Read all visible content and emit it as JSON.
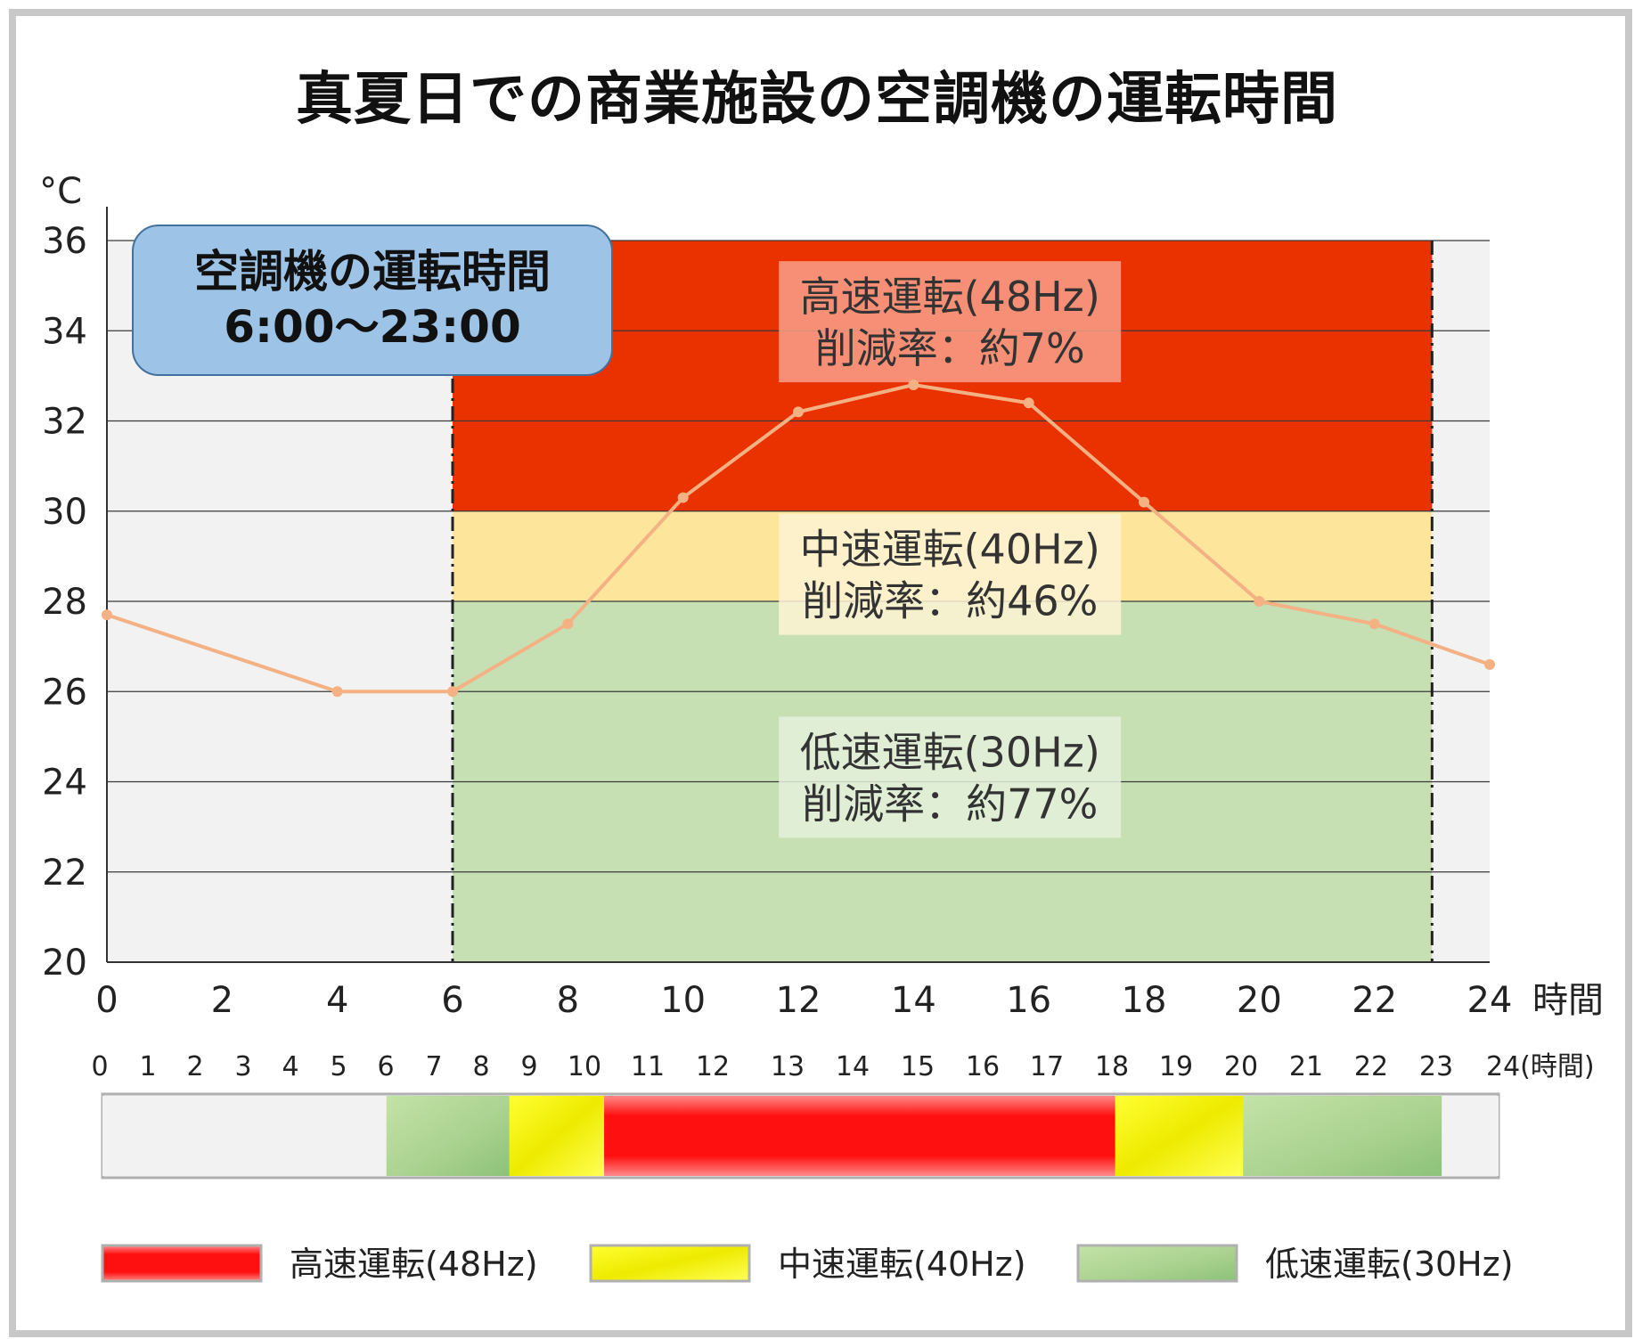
{
  "title": "真夏日での商業施設の空調機の運転時間",
  "callout": {
    "line1": "空調機の運転時間",
    "line2": "6:00～23:00"
  },
  "zones": [
    {
      "name": "高速運転(48Hz)",
      "reduction": "削減率：約7%",
      "from": 30,
      "to": 36,
      "color": "#ea3100",
      "label_bg": "#f8a08a"
    },
    {
      "name": "中速運転(40Hz)",
      "reduction": "削減率：約46%",
      "from": 28,
      "to": 30,
      "color": "#fde59b",
      "label_bg": "#fdf3d4"
    },
    {
      "name": "低速運転(30Hz)",
      "reduction": "削減率：約77%",
      "from": 20,
      "to": 28,
      "color": "#c6e0b4",
      "label_bg": "#e5f0dc"
    }
  ],
  "chart_data": {
    "type": "line",
    "title": "真夏日での商業施設の空調機の運転時間",
    "xlabel": "時間",
    "ylabel": "°C",
    "xlim": [
      0,
      24
    ],
    "ylim": [
      20,
      36
    ],
    "x_ticks": [
      0,
      2,
      4,
      6,
      8,
      10,
      12,
      14,
      16,
      18,
      20,
      22,
      24
    ],
    "y_ticks": [
      20,
      22,
      24,
      26,
      28,
      30,
      32,
      34,
      36
    ],
    "grid": true,
    "operating_hours": {
      "start": 6,
      "end": 23
    },
    "series": [
      {
        "color": "#f4b183",
        "points": [
          {
            "x": 0,
            "y": 27.7
          },
          {
            "x": 4,
            "y": 26.0
          },
          {
            "x": 6,
            "y": 26.0
          },
          {
            "x": 8,
            "y": 27.5
          },
          {
            "x": 10,
            "y": 30.3
          },
          {
            "x": 12,
            "y": 32.2
          },
          {
            "x": 14,
            "y": 32.8
          },
          {
            "x": 16,
            "y": 32.4
          },
          {
            "x": 18,
            "y": 30.2
          },
          {
            "x": 20,
            "y": 28.0
          },
          {
            "x": 22,
            "y": 27.5
          },
          {
            "x": 24,
            "y": 26.6
          }
        ]
      }
    ]
  },
  "timeline": {
    "labels": [
      "0",
      "1",
      "2",
      "3",
      "4",
      "5",
      "6",
      "7",
      "8",
      "9",
      "10",
      "11",
      "12",
      "13",
      "14",
      "15",
      "16",
      "17",
      "18",
      "19",
      "20",
      "21",
      "22",
      "23",
      "24(時間)"
    ],
    "segments": [
      {
        "from": 0,
        "to": 6,
        "mode": "off"
      },
      {
        "from": 6,
        "to": 8.6,
        "mode": "low"
      },
      {
        "from": 8.6,
        "to": 10.6,
        "mode": "mid"
      },
      {
        "from": 10.6,
        "to": 21.4,
        "mode": "high"
      },
      {
        "from": 21.4,
        "to": 24.1,
        "mode": "mid"
      },
      {
        "from": 24.1,
        "to": 28.3,
        "mode": "low"
      },
      {
        "from": 28.3,
        "to": 29.5,
        "mode": "off"
      }
    ]
  },
  "legend": [
    {
      "label": "高速運転(48Hz)",
      "mode": "high"
    },
    {
      "label": "中速運転(40Hz)",
      "mode": "mid"
    },
    {
      "label": "低速運転(30Hz)",
      "mode": "low"
    }
  ],
  "colors": {
    "high": "#ff1010",
    "mid": "#f7ef00",
    "low": "#a9d18e",
    "off": "#f2f2f2",
    "grid_bg": "#f2f2f2",
    "line": "#f4b183"
  }
}
